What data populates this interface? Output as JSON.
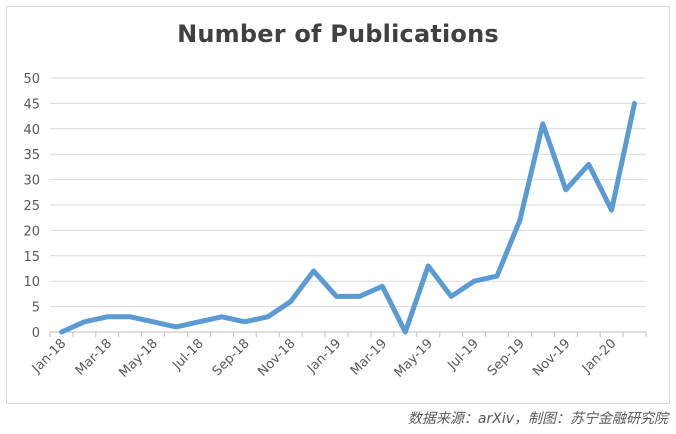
{
  "chart_data": {
    "type": "line",
    "title": "Number of Publications",
    "xlabel": "",
    "ylabel": "",
    "ylim": [
      0,
      50
    ],
    "y_ticks": [
      0,
      5,
      10,
      15,
      20,
      25,
      30,
      35,
      40,
      45,
      50
    ],
    "grid": true,
    "legend": "none",
    "x_tick_labels": [
      "Jan-18",
      "Mar-18",
      "May-18",
      "Jul-18",
      "Sep-18",
      "Nov-18",
      "Jan-19",
      "Mar-19",
      "May-19",
      "Jul-19",
      "Sep-19",
      "Nov-19",
      "Jan-20"
    ],
    "categories": [
      "Jan-18",
      "Feb-18",
      "Mar-18",
      "Apr-18",
      "May-18",
      "Jun-18",
      "Jul-18",
      "Aug-18",
      "Sep-18",
      "Oct-18",
      "Nov-18",
      "Dec-18",
      "Jan-19",
      "Feb-19",
      "Mar-19",
      "Apr-19",
      "May-19",
      "Jun-19",
      "Jul-19",
      "Aug-19",
      "Sep-19",
      "Oct-19",
      "Nov-19",
      "Dec-19",
      "Jan-20",
      "Feb-20"
    ],
    "series": [
      {
        "values": [
          0,
          2,
          3,
          3,
          2,
          1,
          2,
          3,
          2,
          3,
          6,
          12,
          7,
          7,
          9,
          0,
          13,
          7,
          10,
          11,
          22,
          41,
          28,
          33,
          24,
          45
        ]
      }
    ],
    "colors": {
      "line": "#5b9bd5",
      "grid": "#d9d9d9",
      "axis": "#bfbfbf",
      "text": "#595959"
    }
  },
  "source_note": "数据来源：arXiv，制图：苏宁金融研究院"
}
